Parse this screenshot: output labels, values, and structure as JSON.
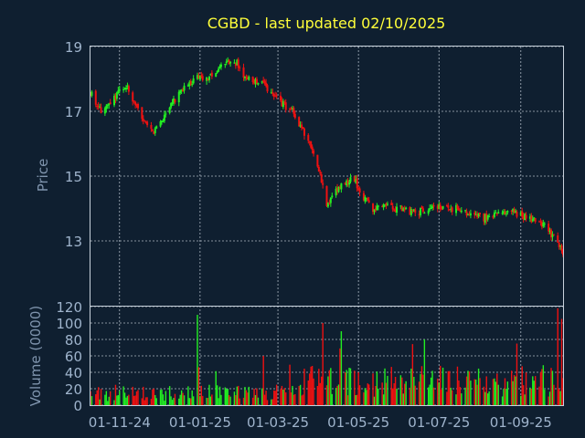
{
  "title": "CGBD - last updated 02/10/2025",
  "colors": {
    "background": "#0f1f30",
    "up": "#22ee22",
    "down": "#ee1111",
    "text": "#9fb4cc",
    "title": "#ffff3a",
    "grid": "#c8d2dc"
  },
  "chart_data": {
    "type": "candlestick",
    "title": "CGBD - last updated 02/10/2025",
    "price_panel": {
      "ylabel": "Price",
      "ylim": [
        11,
        19
      ],
      "yticks": [
        19,
        17,
        15,
        13
      ],
      "grid": true,
      "trend": [
        [
          "2024-10-11",
          17.5
        ],
        [
          "2024-10-18",
          17.0
        ],
        [
          "2024-10-25",
          17.2
        ],
        [
          "2024-11-01",
          17.6
        ],
        [
          "2024-11-06",
          17.8
        ],
        [
          "2024-11-13",
          17.2
        ],
        [
          "2024-11-20",
          16.6
        ],
        [
          "2024-11-27",
          16.4
        ],
        [
          "2024-12-04",
          16.8
        ],
        [
          "2024-12-11",
          17.3
        ],
        [
          "2024-12-18",
          17.6
        ],
        [
          "2024-12-25",
          17.9
        ],
        [
          "2025-01-01",
          18.1
        ],
        [
          "2025-01-08",
          18.0
        ],
        [
          "2025-01-15",
          18.4
        ],
        [
          "2025-01-22",
          18.5
        ],
        [
          "2025-01-29",
          18.5
        ],
        [
          "2025-02-05",
          18.0
        ],
        [
          "2025-02-12",
          17.9
        ],
        [
          "2025-02-19",
          17.8
        ],
        [
          "2025-02-26",
          17.5
        ],
        [
          "2025-03-05",
          17.2
        ],
        [
          "2025-03-12",
          17.0
        ],
        [
          "2025-03-19",
          16.5
        ],
        [
          "2025-03-26",
          15.9
        ],
        [
          "2025-04-02",
          15.0
        ],
        [
          "2025-04-07",
          14.1
        ],
        [
          "2025-04-14",
          14.5
        ],
        [
          "2025-04-21",
          14.8
        ],
        [
          "2025-04-28",
          14.9
        ],
        [
          "2025-05-05",
          14.3
        ],
        [
          "2025-05-12",
          14.0
        ],
        [
          "2025-05-19",
          14.1
        ],
        [
          "2025-05-26",
          14.0
        ],
        [
          "2025-06-02",
          14.0
        ],
        [
          "2025-06-09",
          13.9
        ],
        [
          "2025-06-16",
          13.9
        ],
        [
          "2025-06-23",
          14.0
        ],
        [
          "2025-06-30",
          14.1
        ],
        [
          "2025-07-07",
          14.0
        ],
        [
          "2025-07-14",
          14.0
        ],
        [
          "2025-07-21",
          13.9
        ],
        [
          "2025-07-28",
          13.8
        ],
        [
          "2025-08-04",
          13.7
        ],
        [
          "2025-08-11",
          13.8
        ],
        [
          "2025-08-18",
          13.9
        ],
        [
          "2025-08-25",
          13.9
        ],
        [
          "2025-09-01",
          13.8
        ],
        [
          "2025-09-08",
          13.7
        ],
        [
          "2025-09-15",
          13.6
        ],
        [
          "2025-09-22",
          13.3
        ],
        [
          "2025-09-29",
          13.0
        ],
        [
          "2025-10-03",
          12.6
        ]
      ]
    },
    "volume_panel": {
      "ylabel": "Volume (0000)",
      "ylim": [
        0,
        120
      ],
      "yticks": [
        120,
        100,
        80,
        60,
        40,
        20,
        0
      ],
      "grid": true,
      "spikes": [
        [
          "2024-12-30",
          110
        ],
        [
          "2025-02-18",
          60
        ],
        [
          "2025-04-04",
          100
        ],
        [
          "2025-04-18",
          90
        ],
        [
          "2025-06-20",
          80
        ],
        [
          "2025-08-29",
          75
        ],
        [
          "2025-09-29",
          110
        ],
        [
          "2025-10-02",
          105
        ]
      ]
    },
    "x_axis": {
      "start": "2024-10-10",
      "end": "2025-10-03",
      "ticks": [
        "01-11-24",
        "01-01-25",
        "01-03-25",
        "01-05-25",
        "01-07-25",
        "01-09-25"
      ],
      "tick_dates": [
        "2024-11-01",
        "2025-01-01",
        "2025-03-01",
        "2025-05-01",
        "2025-07-01",
        "2025-09-01"
      ]
    }
  }
}
